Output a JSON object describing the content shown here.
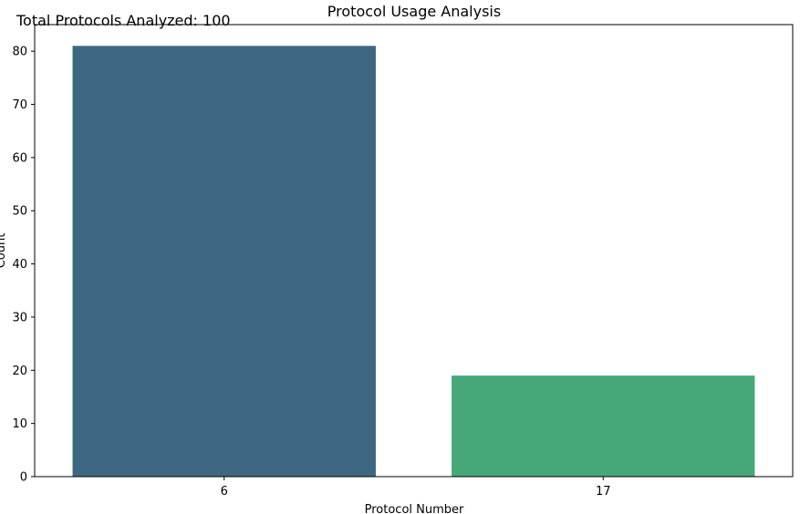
{
  "chart_data": {
    "type": "bar",
    "title": "Protocol Usage Analysis",
    "annotation": "Total Protocols Analyzed: 100",
    "xlabel": "Protocol Number",
    "ylabel": "Count",
    "categories": [
      "6",
      "17"
    ],
    "values": [
      81,
      19
    ],
    "colors": [
      "#3e6782",
      "#46a878"
    ],
    "ylim": [
      0,
      85
    ],
    "yticks": [
      0,
      10,
      20,
      30,
      40,
      50,
      60,
      70,
      80
    ],
    "grid": false,
    "legend": "none"
  }
}
